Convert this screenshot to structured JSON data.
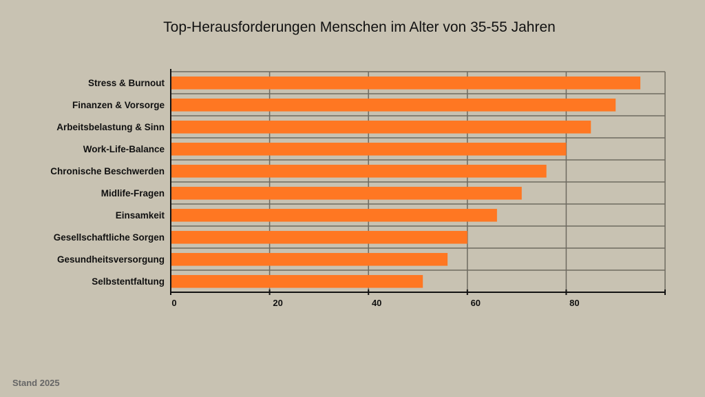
{
  "chart_data": {
    "type": "bar",
    "orientation": "horizontal",
    "title": "Top-Herausforderungen Menschen im Alter von 35-55 Jahren",
    "categories": [
      "Stress & Burnout",
      "Finanzen & Vorsorge",
      "Arbeitsbelastung & Sinn",
      "Work-Life-Balance",
      "Chronische Beschwerden",
      "Midlife-Fragen",
      "Einsamkeit",
      "Gesellschaftliche Sorgen",
      "Gesundheitsversorgung",
      "Selbstentfaltung"
    ],
    "values": [
      95,
      90,
      85,
      80,
      76,
      71,
      66,
      60,
      56,
      51
    ],
    "xticks": [
      "0",
      "20",
      "40",
      "60",
      "80"
    ],
    "xlim": [
      0,
      100
    ],
    "xlabel": "",
    "ylabel": "",
    "grid": true,
    "bar_color": "#ff7722"
  },
  "footer": "Stand 2025"
}
